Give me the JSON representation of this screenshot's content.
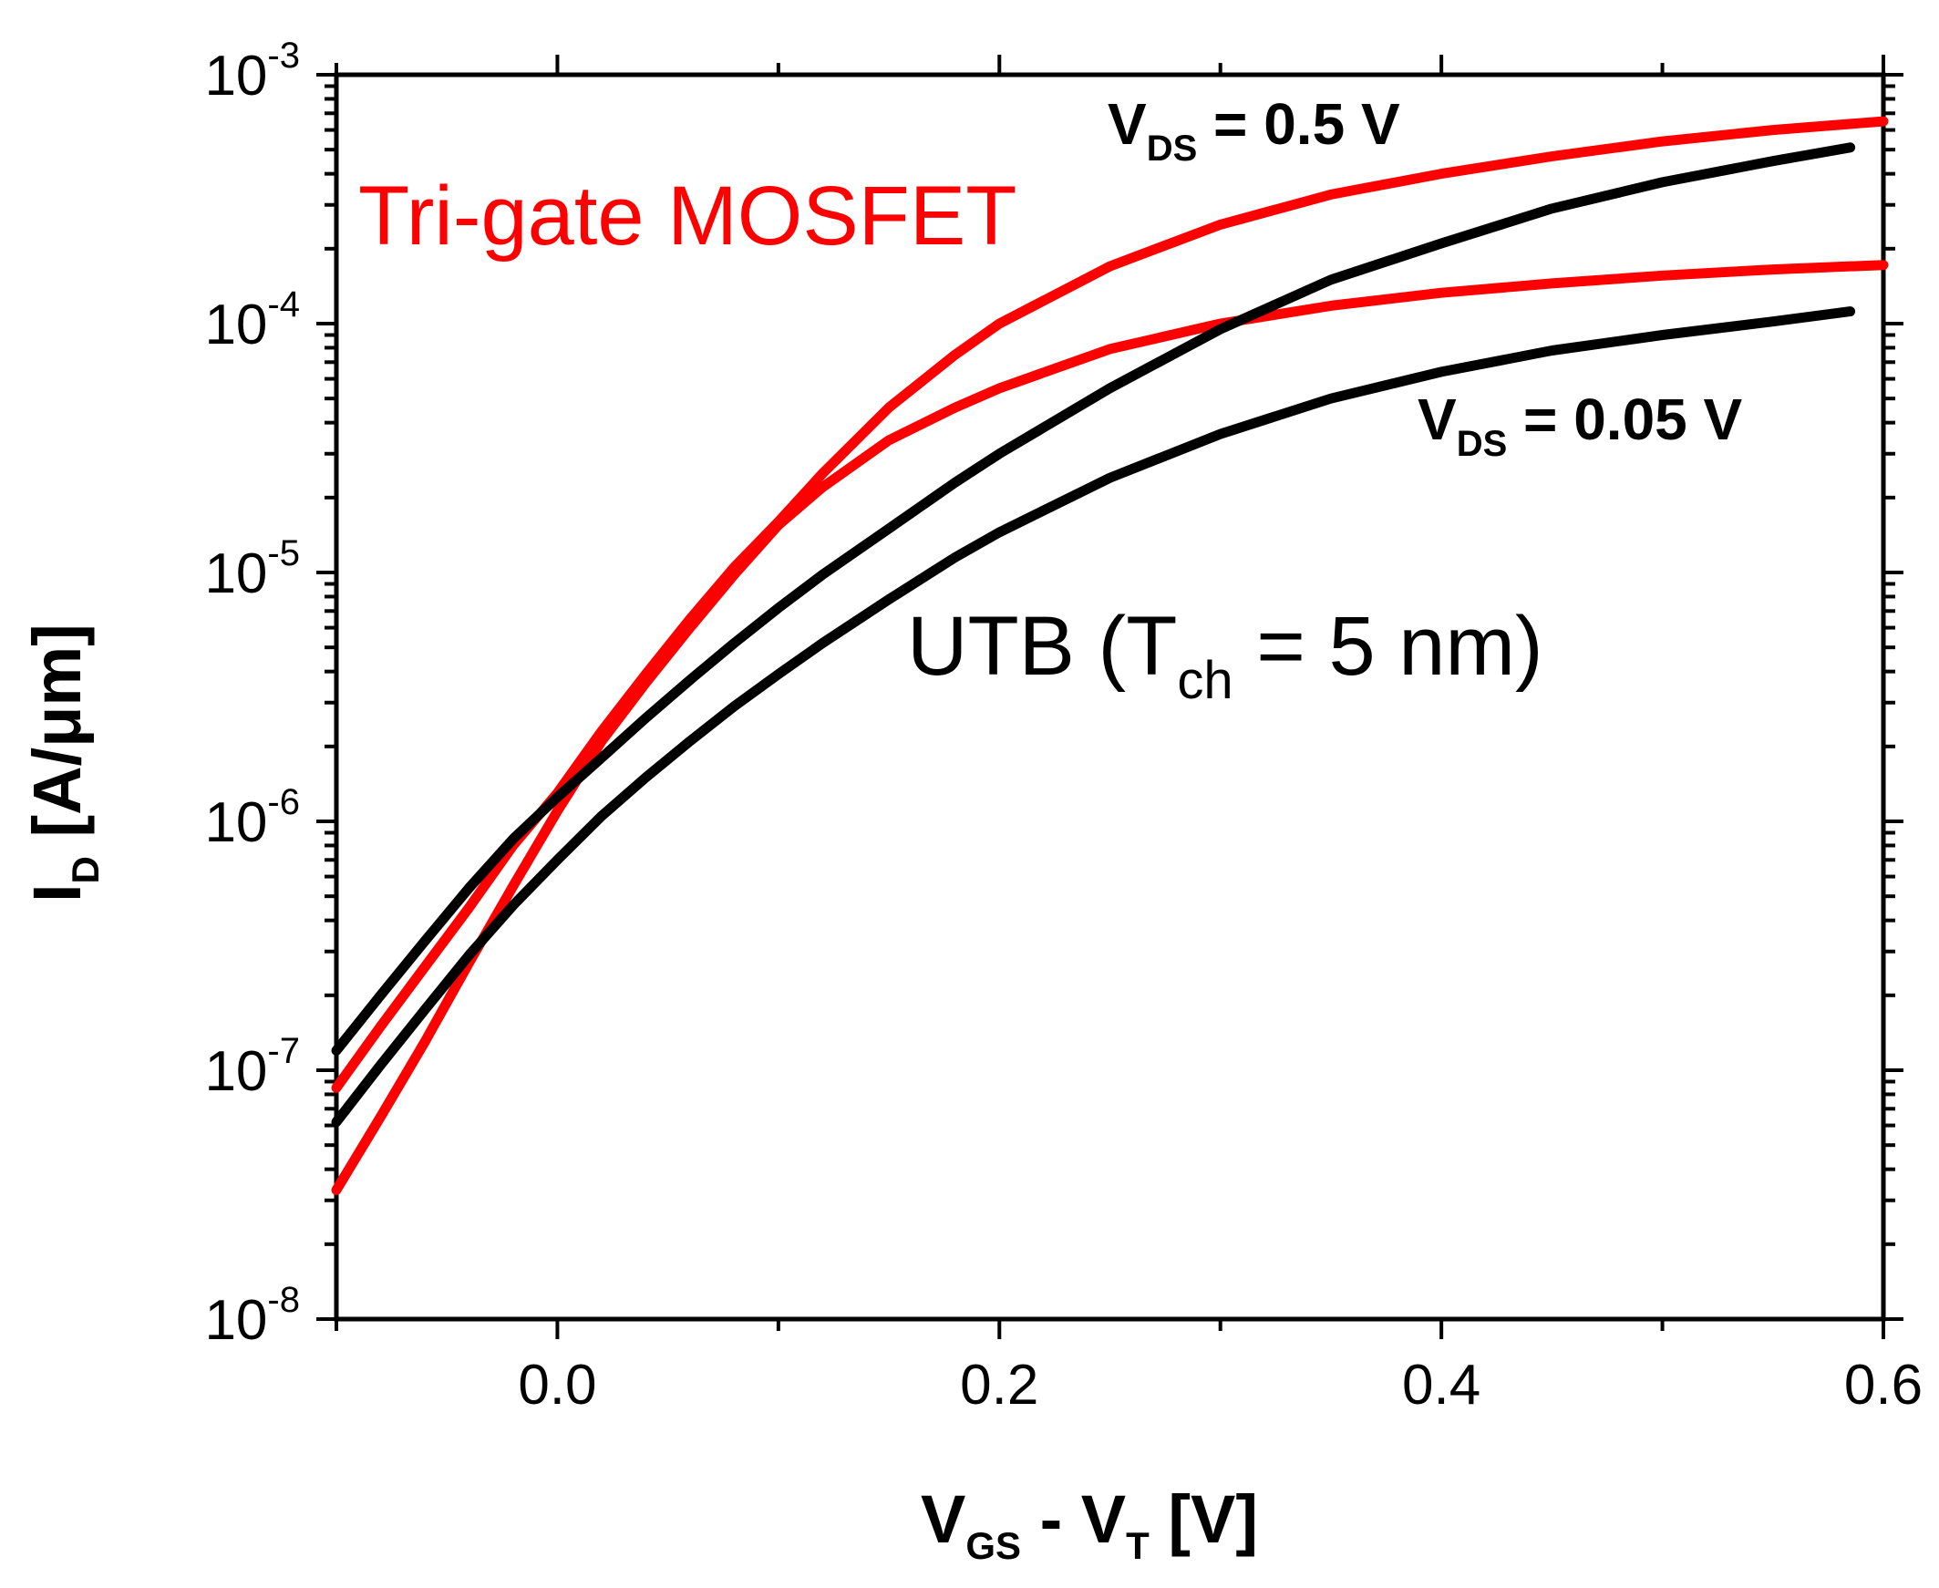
{
  "chart_data": {
    "type": "line",
    "y_scale": "log",
    "xlim": [
      -0.1,
      0.6
    ],
    "ylim": [
      1e-08,
      0.001
    ],
    "x_ticks": [
      {
        "value": 0.0,
        "label": "0.0"
      },
      {
        "value": 0.2,
        "label": "0.2"
      },
      {
        "value": 0.4,
        "label": "0.4"
      },
      {
        "value": 0.6,
        "label": "0.6"
      }
    ],
    "y_ticks": [
      {
        "value": 1e-08,
        "base": "10",
        "exp": "-8"
      },
      {
        "value": 1e-07,
        "base": "10",
        "exp": "-7"
      },
      {
        "value": 1e-06,
        "base": "10",
        "exp": "-6"
      },
      {
        "value": 1e-05,
        "base": "10",
        "exp": "-5"
      },
      {
        "value": 0.0001,
        "base": "10",
        "exp": "-4"
      },
      {
        "value": 0.001,
        "base": "10",
        "exp": "-3"
      }
    ],
    "xlabel": {
      "main": "V",
      "sub": "GS",
      "mid": " - V",
      "sub2": "T",
      "tail": " [V]"
    },
    "ylabel": {
      "main": "I",
      "sub": "D",
      "tail": " [A/μm]"
    },
    "annotations": {
      "vds_high": {
        "main": "V",
        "sub": "DS",
        "tail": " = 0.5 V"
      },
      "vds_low": {
        "main": "V",
        "sub": "DS",
        "tail": " = 0.05 V"
      },
      "trigate": {
        "text": "Tri-gate MOSFET",
        "color": "#ff0000"
      },
      "utb": {
        "main": "UTB (T",
        "sub": "ch",
        "tail": " = 5 nm)",
        "color": "#000000"
      }
    },
    "series": [
      {
        "name": "Tri-gate MOSFET, VDS = 0.5 V",
        "color": "#ff0000",
        "x": [
          -0.1,
          -0.08,
          -0.06,
          -0.04,
          -0.02,
          0.0,
          0.02,
          0.04,
          0.06,
          0.08,
          0.1,
          0.12,
          0.15,
          0.18,
          0.2,
          0.25,
          0.3,
          0.35,
          0.4,
          0.45,
          0.5,
          0.55,
          0.6
        ],
        "y": [
          8.5e-08,
          1.5e-07,
          2.6e-07,
          4.5e-07,
          8e-07,
          1.3e-06,
          2.3e-06,
          3.9e-06,
          6.5e-06,
          1.05e-05,
          1.6e-05,
          2.5e-05,
          4.6e-05,
          7.5e-05,
          0.0001,
          0.00017,
          0.00025,
          0.00033,
          0.0004,
          0.00047,
          0.00054,
          0.0006,
          0.00065
        ]
      },
      {
        "name": "Tri-gate MOSFET, VDS = 0.05 V",
        "color": "#ff0000",
        "x": [
          -0.1,
          -0.08,
          -0.06,
          -0.04,
          -0.02,
          0.0,
          0.02,
          0.04,
          0.06,
          0.08,
          0.1,
          0.12,
          0.15,
          0.18,
          0.2,
          0.25,
          0.3,
          0.35,
          0.4,
          0.45,
          0.5,
          0.55,
          0.6
        ],
        "y": [
          3.3e-08,
          6.5e-08,
          1.3e-07,
          2.7e-07,
          5.5e-07,
          1.1e-06,
          2.1e-06,
          3.6e-06,
          6e-06,
          9.8e-06,
          1.55e-05,
          2.2e-05,
          3.4e-05,
          4.6e-05,
          5.5e-05,
          7.9e-05,
          0.0001,
          0.000118,
          0.000133,
          0.000145,
          0.000156,
          0.000165,
          0.000172
        ]
      },
      {
        "name": "UTB (Tch = 5 nm), VDS = 0.5 V",
        "color": "#000000",
        "x": [
          -0.1,
          -0.08,
          -0.06,
          -0.04,
          -0.02,
          0.0,
          0.02,
          0.04,
          0.06,
          0.08,
          0.1,
          0.12,
          0.15,
          0.18,
          0.2,
          0.25,
          0.3,
          0.35,
          0.4,
          0.45,
          0.5,
          0.55,
          0.585
        ],
        "y": [
          1.2e-07,
          2e-07,
          3.3e-07,
          5.4e-07,
          8.5e-07,
          1.25e-06,
          1.8e-06,
          2.6e-06,
          3.7e-06,
          5.2e-06,
          7.2e-06,
          9.8e-06,
          1.5e-05,
          2.3e-05,
          3e-05,
          5.5e-05,
          9.5e-05,
          0.00015,
          0.00021,
          0.00029,
          0.00037,
          0.00045,
          0.00051
        ]
      },
      {
        "name": "UTB (Tch = 5 nm), VDS = 0.05 V",
        "color": "#000000",
        "x": [
          -0.1,
          -0.08,
          -0.06,
          -0.04,
          -0.02,
          0.0,
          0.02,
          0.04,
          0.06,
          0.08,
          0.1,
          0.12,
          0.15,
          0.18,
          0.2,
          0.25,
          0.3,
          0.35,
          0.4,
          0.45,
          0.5,
          0.55,
          0.585
        ],
        "y": [
          6.2e-08,
          1.05e-07,
          1.75e-07,
          2.9e-07,
          4.6e-07,
          7e-07,
          1.05e-06,
          1.5e-06,
          2.1e-06,
          2.9e-06,
          3.9e-06,
          5.2e-06,
          7.8e-06,
          1.15e-05,
          1.45e-05,
          2.4e-05,
          3.6e-05,
          5e-05,
          6.4e-05,
          7.8e-05,
          9e-05,
          0.000102,
          0.000112
        ]
      }
    ]
  }
}
